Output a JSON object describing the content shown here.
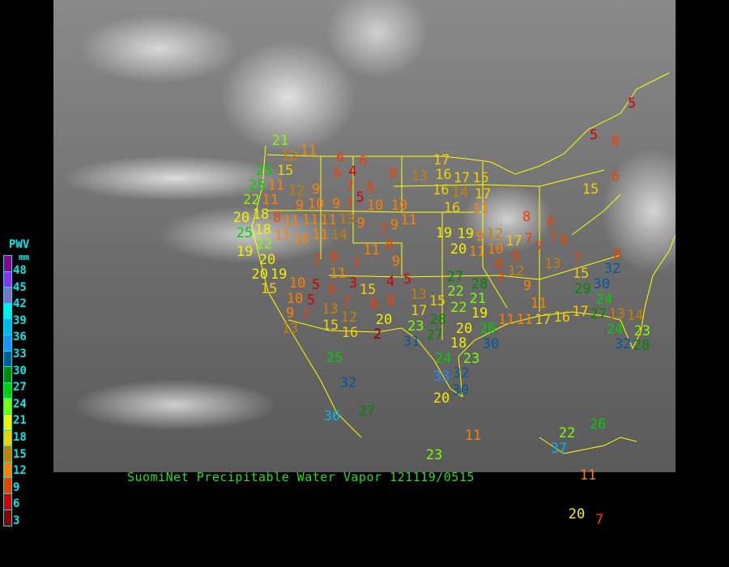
{
  "caption": "SuomiNet Precipitable Water Vapor  121119/0515",
  "legend": {
    "title": "PWV",
    "unit": "mm",
    "labels": [
      "48",
      "45",
      "42",
      "39",
      "36",
      "33",
      "30",
      "27",
      "24",
      "21",
      "18",
      "15",
      "12",
      "9",
      "6",
      "3"
    ],
    "colors": [
      "#900090",
      "#9030f0",
      "#8070d0",
      "#00f0f0",
      "#00b8e8",
      "#2090ff",
      "#005a98",
      "#008800",
      "#00d000",
      "#80ff00",
      "#f0f000",
      "#f0d000",
      "#c88000",
      "#ff8000",
      "#f04000",
      "#d00000",
      "#8b0000"
    ]
  },
  "stations": [
    11,
    6,
    6,
    25,
    12,
    15,
    6,
    4,
    8,
    13,
    25,
    11,
    12,
    9,
    7,
    8,
    5,
    22,
    11,
    9,
    10,
    9,
    7,
    10,
    10,
    20,
    18,
    8,
    11,
    11,
    11,
    13,
    9,
    7,
    9,
    11,
    25,
    18,
    11,
    10,
    11,
    14,
    22,
    19,
    20,
    19,
    11,
    8,
    7,
    8,
    7,
    9,
    11,
    20,
    15,
    10,
    5,
    6,
    3,
    4,
    5,
    15,
    10,
    5,
    7,
    6,
    8,
    13,
    13,
    12,
    9,
    7,
    13,
    15,
    16,
    2,
    20,
    15,
    17,
    17,
    16,
    17,
    15,
    16,
    14,
    16,
    17,
    11,
    19,
    19,
    9,
    12,
    17,
    20,
    11,
    10,
    8,
    8,
    12,
    7,
    9,
    8,
    7,
    7,
    6,
    7,
    6,
    7,
    13,
    15,
    29,
    30,
    32,
    8,
    11,
    11,
    11,
    17,
    16,
    17,
    27,
    24,
    13,
    14,
    24,
    23,
    32,
    28,
    27,
    22,
    28,
    22,
    21,
    19,
    26,
    28,
    27,
    20,
    23,
    31,
    18,
    30,
    24,
    23,
    32,
    33,
    30,
    20,
    25,
    32,
    27,
    36,
    11,
    23,
    22,
    37,
    26,
    11,
    20,
    7,
    5,
    5,
    8,
    6,
    15,
    21
  ]
}
